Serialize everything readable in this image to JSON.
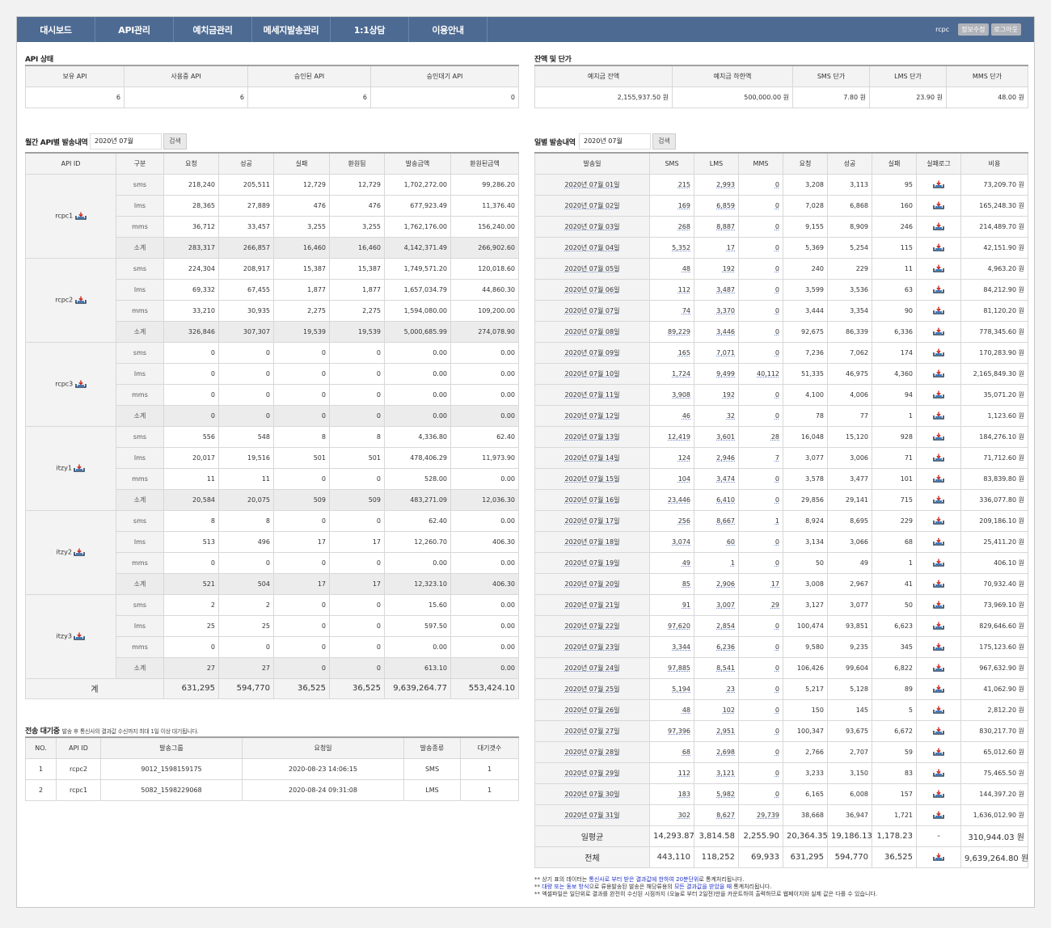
{
  "nav": {
    "items": [
      "대시보드",
      "API관리",
      "예치금관리",
      "메세지발송관리",
      "1:1상담",
      "이용안내"
    ],
    "user": "rcpc",
    "edit": "정보수정",
    "logout": "로그아웃"
  },
  "api_status": {
    "title": "API 상태",
    "headers": [
      "보유 API",
      "사용중 API",
      "승인된 API",
      "승인대기 API"
    ],
    "values": [
      "6",
      "6",
      "6",
      "0"
    ]
  },
  "balance": {
    "title": "잔액 및 단가",
    "headers": [
      "예치금 잔액",
      "예치금 하한액",
      "SMS 단가",
      "LMS 단가",
      "MMS 단가"
    ],
    "values": [
      "2,155,937.50 원",
      "500,000.00 원",
      "7.80 원",
      "23.90 원",
      "48.00 원"
    ]
  },
  "monthly": {
    "title": "월간 API별 발송내역",
    "month": "2020년 07월",
    "search": "검색",
    "headers": [
      "API ID",
      "구분",
      "요청",
      "성공",
      "실패",
      "환원됨",
      "발송금액",
      "환원된금액"
    ],
    "groups": [
      {
        "id": "rcpc1",
        "rows": [
          [
            "sms",
            "218,240",
            "205,511",
            "12,729",
            "12,729",
            "1,702,272.00",
            "99,286.20"
          ],
          [
            "lms",
            "28,365",
            "27,889",
            "476",
            "476",
            "677,923.49",
            "11,376.40"
          ],
          [
            "mms",
            "36,712",
            "33,457",
            "3,255",
            "3,255",
            "1,762,176.00",
            "156,240.00"
          ],
          [
            "소계",
            "283,317",
            "266,857",
            "16,460",
            "16,460",
            "4,142,371.49",
            "266,902.60"
          ]
        ]
      },
      {
        "id": "rcpc2",
        "rows": [
          [
            "sms",
            "224,304",
            "208,917",
            "15,387",
            "15,387",
            "1,749,571.20",
            "120,018.60"
          ],
          [
            "lms",
            "69,332",
            "67,455",
            "1,877",
            "1,877",
            "1,657,034.79",
            "44,860.30"
          ],
          [
            "mms",
            "33,210",
            "30,935",
            "2,275",
            "2,275",
            "1,594,080.00",
            "109,200.00"
          ],
          [
            "소계",
            "326,846",
            "307,307",
            "19,539",
            "19,539",
            "5,000,685.99",
            "274,078.90"
          ]
        ]
      },
      {
        "id": "rcpc3",
        "rows": [
          [
            "sms",
            "0",
            "0",
            "0",
            "0",
            "0.00",
            "0.00"
          ],
          [
            "lms",
            "0",
            "0",
            "0",
            "0",
            "0.00",
            "0.00"
          ],
          [
            "mms",
            "0",
            "0",
            "0",
            "0",
            "0.00",
            "0.00"
          ],
          [
            "소계",
            "0",
            "0",
            "0",
            "0",
            "0.00",
            "0.00"
          ]
        ]
      },
      {
        "id": "itzy1",
        "rows": [
          [
            "sms",
            "556",
            "548",
            "8",
            "8",
            "4,336.80",
            "62.40"
          ],
          [
            "lms",
            "20,017",
            "19,516",
            "501",
            "501",
            "478,406.29",
            "11,973.90"
          ],
          [
            "mms",
            "11",
            "11",
            "0",
            "0",
            "528.00",
            "0.00"
          ],
          [
            "소계",
            "20,584",
            "20,075",
            "509",
            "509",
            "483,271.09",
            "12,036.30"
          ]
        ]
      },
      {
        "id": "itzy2",
        "rows": [
          [
            "sms",
            "8",
            "8",
            "0",
            "0",
            "62.40",
            "0.00"
          ],
          [
            "lms",
            "513",
            "496",
            "17",
            "17",
            "12,260.70",
            "406.30"
          ],
          [
            "mms",
            "0",
            "0",
            "0",
            "0",
            "0.00",
            "0.00"
          ],
          [
            "소계",
            "521",
            "504",
            "17",
            "17",
            "12,323.10",
            "406.30"
          ]
        ]
      },
      {
        "id": "itzy3",
        "rows": [
          [
            "sms",
            "2",
            "2",
            "0",
            "0",
            "15.60",
            "0.00"
          ],
          [
            "lms",
            "25",
            "25",
            "0",
            "0",
            "597.50",
            "0.00"
          ],
          [
            "mms",
            "0",
            "0",
            "0",
            "0",
            "0.00",
            "0.00"
          ],
          [
            "소계",
            "27",
            "27",
            "0",
            "0",
            "613.10",
            "0.00"
          ]
        ]
      }
    ],
    "total": [
      "계",
      "631,295",
      "594,770",
      "36,525",
      "36,525",
      "9,639,264.77",
      "553,424.10"
    ]
  },
  "queue": {
    "title": "전송 대기중",
    "note": "발송 후 통신사의 결과값 수신까지 최대 1일 이상 대기됩니다.",
    "headers": [
      "NO.",
      "API ID",
      "발송그룹",
      "요청일",
      "발송종류",
      "대기갯수"
    ],
    "rows": [
      [
        "1",
        "rcpc2",
        "9012_1598159175",
        "2020-08-23 14:06:15",
        "SMS",
        "1"
      ],
      [
        "2",
        "rcpc1",
        "5082_1598229068",
        "2020-08-24 09:31:08",
        "LMS",
        "1"
      ]
    ]
  },
  "daily": {
    "title": "일별 발송내역",
    "month": "2020년 07월",
    "search": "검색",
    "headers": [
      "발송일",
      "SMS",
      "LMS",
      "MMS",
      "요청",
      "성공",
      "실패",
      "실패로그",
      "비용"
    ],
    "rows": [
      [
        "2020년 07월 01일",
        "215",
        "2,993",
        "0",
        "3,208",
        "3,113",
        "95",
        "73,209.70 원"
      ],
      [
        "2020년 07월 02일",
        "169",
        "6,859",
        "0",
        "7,028",
        "6,868",
        "160",
        "165,248.30 원"
      ],
      [
        "2020년 07월 03일",
        "268",
        "8,887",
        "0",
        "9,155",
        "8,909",
        "246",
        "214,489.70 원"
      ],
      [
        "2020년 07월 04일",
        "5,352",
        "17",
        "0",
        "5,369",
        "5,254",
        "115",
        "42,151.90 원"
      ],
      [
        "2020년 07월 05일",
        "48",
        "192",
        "0",
        "240",
        "229",
        "11",
        "4,963.20 원"
      ],
      [
        "2020년 07월 06일",
        "112",
        "3,487",
        "0",
        "3,599",
        "3,536",
        "63",
        "84,212.90 원"
      ],
      [
        "2020년 07월 07일",
        "74",
        "3,370",
        "0",
        "3,444",
        "3,354",
        "90",
        "81,120.20 원"
      ],
      [
        "2020년 07월 08일",
        "89,229",
        "3,446",
        "0",
        "92,675",
        "86,339",
        "6,336",
        "778,345.60 원"
      ],
      [
        "2020년 07월 09일",
        "165",
        "7,071",
        "0",
        "7,236",
        "7,062",
        "174",
        "170,283.90 원"
      ],
      [
        "2020년 07월 10일",
        "1,724",
        "9,499",
        "40,112",
        "51,335",
        "46,975",
        "4,360",
        "2,165,849.30 원"
      ],
      [
        "2020년 07월 11일",
        "3,908",
        "192",
        "0",
        "4,100",
        "4,006",
        "94",
        "35,071.20 원"
      ],
      [
        "2020년 07월 12일",
        "46",
        "32",
        "0",
        "78",
        "77",
        "1",
        "1,123.60 원"
      ],
      [
        "2020년 07월 13일",
        "12,419",
        "3,601",
        "28",
        "16,048",
        "15,120",
        "928",
        "184,276.10 원"
      ],
      [
        "2020년 07월 14일",
        "124",
        "2,946",
        "7",
        "3,077",
        "3,006",
        "71",
        "71,712.60 원"
      ],
      [
        "2020년 07월 15일",
        "104",
        "3,474",
        "0",
        "3,578",
        "3,477",
        "101",
        "83,839.80 원"
      ],
      [
        "2020년 07월 16일",
        "23,446",
        "6,410",
        "0",
        "29,856",
        "29,141",
        "715",
        "336,077.80 원"
      ],
      [
        "2020년 07월 17일",
        "256",
        "8,667",
        "1",
        "8,924",
        "8,695",
        "229",
        "209,186.10 원"
      ],
      [
        "2020년 07월 18일",
        "3,074",
        "60",
        "0",
        "3,134",
        "3,066",
        "68",
        "25,411.20 원"
      ],
      [
        "2020년 07월 19일",
        "49",
        "1",
        "0",
        "50",
        "49",
        "1",
        "406.10 원"
      ],
      [
        "2020년 07월 20일",
        "85",
        "2,906",
        "17",
        "3,008",
        "2,967",
        "41",
        "70,932.40 원"
      ],
      [
        "2020년 07월 21일",
        "91",
        "3,007",
        "29",
        "3,127",
        "3,077",
        "50",
        "73,969.10 원"
      ],
      [
        "2020년 07월 22일",
        "97,620",
        "2,854",
        "0",
        "100,474",
        "93,851",
        "6,623",
        "829,646.60 원"
      ],
      [
        "2020년 07월 23일",
        "3,344",
        "6,236",
        "0",
        "9,580",
        "9,235",
        "345",
        "175,123.60 원"
      ],
      [
        "2020년 07월 24일",
        "97,885",
        "8,541",
        "0",
        "106,426",
        "99,604",
        "6,822",
        "967,632.90 원"
      ],
      [
        "2020년 07월 25일",
        "5,194",
        "23",
        "0",
        "5,217",
        "5,128",
        "89",
        "41,062.90 원"
      ],
      [
        "2020년 07월 26일",
        "48",
        "102",
        "0",
        "150",
        "145",
        "5",
        "2,812.20 원"
      ],
      [
        "2020년 07월 27일",
        "97,396",
        "2,951",
        "0",
        "100,347",
        "93,675",
        "6,672",
        "830,217.70 원"
      ],
      [
        "2020년 07월 28일",
        "68",
        "2,698",
        "0",
        "2,766",
        "2,707",
        "59",
        "65,012.60 원"
      ],
      [
        "2020년 07월 29일",
        "112",
        "3,121",
        "0",
        "3,233",
        "3,150",
        "83",
        "75,465.50 원"
      ],
      [
        "2020년 07월 30일",
        "183",
        "5,982",
        "0",
        "6,165",
        "6,008",
        "157",
        "144,397.20 원"
      ],
      [
        "2020년 07월 31일",
        "302",
        "8,627",
        "29,739",
        "38,668",
        "36,947",
        "1,721",
        "1,636,012.90 원"
      ]
    ],
    "avg": [
      "일평균",
      "14,293.87",
      "3,814.58",
      "2,255.90",
      "20,364.35",
      "19,186.13",
      "1,178.23",
      "-",
      "310,944.03 원"
    ],
    "all": [
      "전체",
      "443,110",
      "118,252",
      "69,933",
      "631,295",
      "594,770",
      "36,525",
      "",
      "9,639,264.80 원"
    ]
  },
  "notes": [
    {
      "pre": "** 상기 표의 데이터는 ",
      "hl": "통신사로 부터 받은 결과값에 한하여 20분단위",
      "post": "로 통계처리됩니다."
    },
    {
      "pre": "** ",
      "hl": "대량 또는 동보 방식",
      "mid": "으로 류용발송된 발송은 해당류용의 ",
      "hl2": "모든 결과값을 받았을 때",
      "post": " 통계처리됩니다."
    },
    {
      "pre": "** 엑셀파일은 일단위로 결과를 완전히 수신된 시점까지 (오늘로 부터 2일전)만을 카운트하여 출력하므로 웹페이지와 실제 값은 다를 수 있습니다.",
      "hl": "",
      "post": ""
    }
  ],
  "colors": {
    "nav_bg": "#4d6a92",
    "header_bg": "#f3f3f3",
    "link_underline": "#6a84c0",
    "note_highlight": "#1d30c8"
  },
  "icons": {
    "download": "download-tray-icon"
  }
}
